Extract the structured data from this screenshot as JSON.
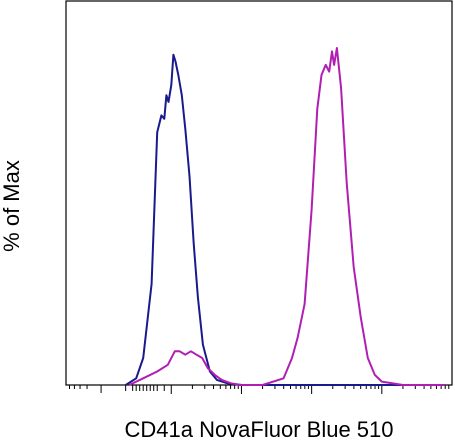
{
  "chart_data": {
    "type": "line",
    "title": "",
    "xlabel": "CD41a NovaFluor Blue 510",
    "ylabel": "% of Max",
    "xscale": "log",
    "xlim": [
      -0.5,
      5
    ],
    "ylim": [
      0,
      100
    ],
    "grid": false,
    "legend": "none",
    "x_ticks_shown": false,
    "y_ticks_shown": false,
    "series": [
      {
        "color": "#1a1a8c",
        "x": [
          0.35,
          0.5,
          0.6,
          0.72,
          0.8,
          0.86,
          0.9,
          0.93,
          0.96,
          1.0,
          1.03,
          1.06,
          1.1,
          1.15,
          1.2,
          1.26,
          1.32,
          1.38,
          1.45,
          1.55,
          1.65,
          1.8,
          2.0,
          2.5,
          3.0,
          3.5,
          4.0,
          4.5,
          4.9
        ],
        "y": [
          0,
          2,
          8,
          30,
          75,
          80,
          79,
          86,
          84,
          89,
          98,
          96,
          92,
          86,
          76,
          62,
          42,
          26,
          12,
          4,
          1.5,
          0.5,
          0,
          0,
          0,
          0,
          0,
          0,
          0
        ]
      },
      {
        "color": "#b01eb4",
        "x": [
          0.4,
          0.6,
          0.8,
          0.95,
          1.05,
          1.12,
          1.2,
          1.28,
          1.36,
          1.44,
          1.52,
          1.62,
          1.72,
          1.85,
          2.0,
          2.3,
          2.6,
          2.72,
          2.8,
          2.9,
          3.0,
          3.08,
          3.14,
          3.2,
          3.25,
          3.29,
          3.32,
          3.36,
          3.42,
          3.5,
          3.6,
          3.7,
          3.8,
          3.9,
          4.0,
          4.3,
          4.9
        ],
        "y": [
          0,
          2,
          4,
          6,
          10,
          10,
          9,
          10,
          9,
          8,
          5,
          3,
          1.5,
          0.5,
          0,
          0,
          2,
          8,
          14,
          24,
          52,
          82,
          92,
          95,
          93,
          99,
          95,
          100,
          88,
          60,
          35,
          20,
          8,
          3,
          1,
          0,
          0
        ]
      }
    ]
  }
}
